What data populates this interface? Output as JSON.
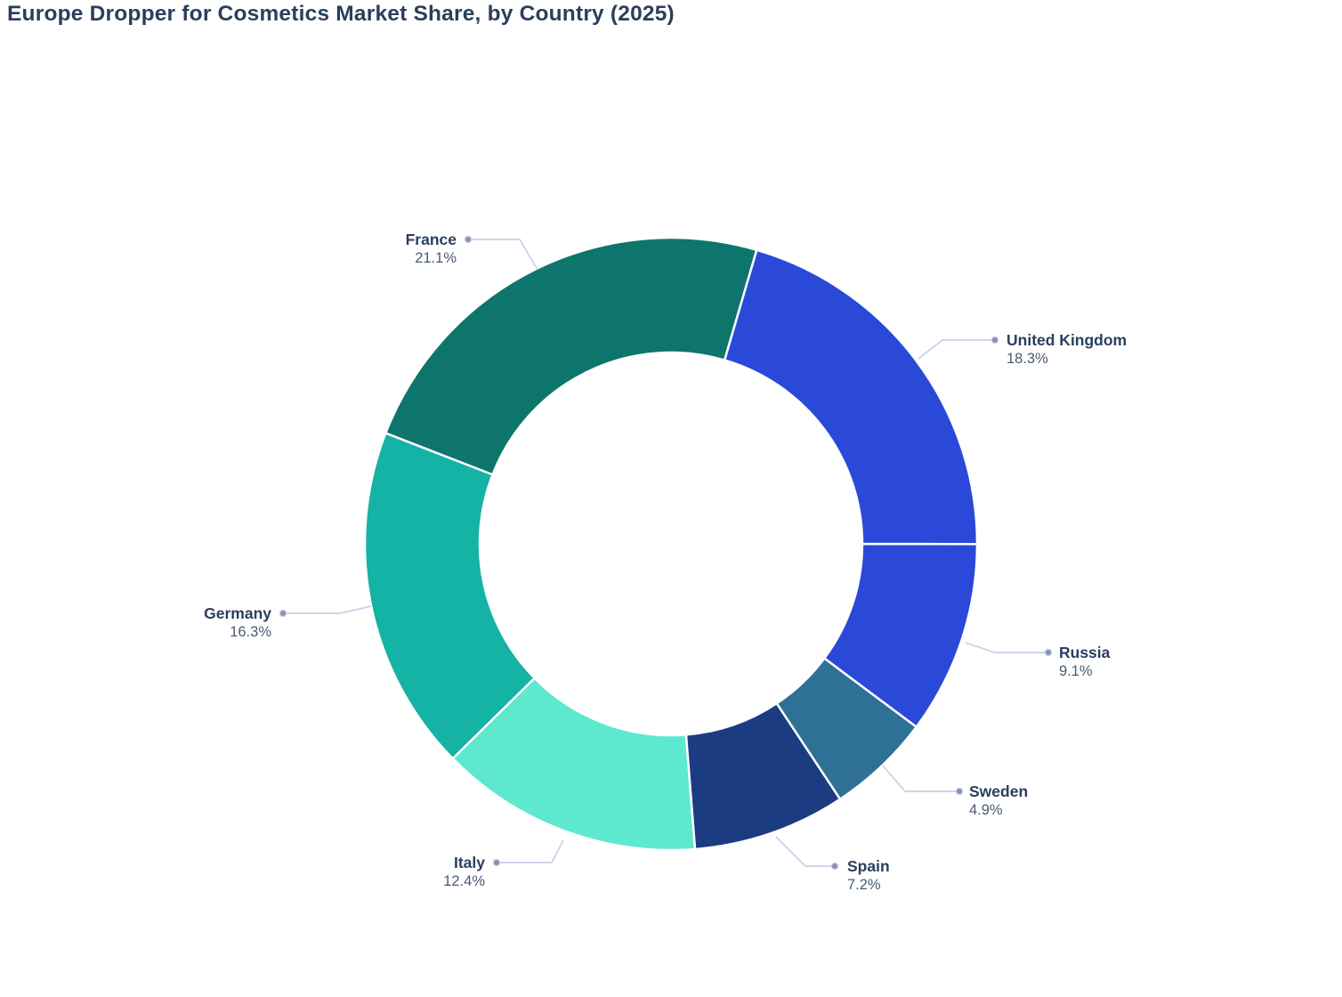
{
  "title": "Europe Dropper for Cosmetics Market Share, by Country (2025)",
  "chart_data": {
    "type": "pie",
    "subtype": "donut",
    "title": "Europe Dropper for Cosmetics Market Share, by Country (2025)",
    "labels": [
      "France",
      "United Kingdom",
      "Russia",
      "Sweden",
      "Spain",
      "Italy",
      "Germany"
    ],
    "values": [
      21.1,
      18.3,
      9.1,
      4.9,
      7.2,
      12.4,
      16.3
    ],
    "pct_labels": [
      "21.1%",
      "18.3%",
      "9.1%",
      "4.9%",
      "7.2%",
      "12.4%",
      "16.3%"
    ],
    "colors": [
      "#0e756d",
      "#2a49d8",
      "#2a49d8",
      "#2f7096",
      "#1c3c82",
      "#5ee8d0",
      "#15b2a6"
    ],
    "hole": 0.625,
    "start_angle_deg": -68.8,
    "direction": "clockwise",
    "legend": "none",
    "labels_position": "outside-with-leader-lines"
  },
  "styles": {
    "background": "#ffffff",
    "title_color": "#2b3e5c",
    "label_name_color": "#2a3f5f",
    "label_pct_color": "#4a5b72",
    "leader_line_color": "#c9d0e7",
    "leader_dot_color": "#8793b1",
    "slice_border_color": "#ffffff"
  }
}
